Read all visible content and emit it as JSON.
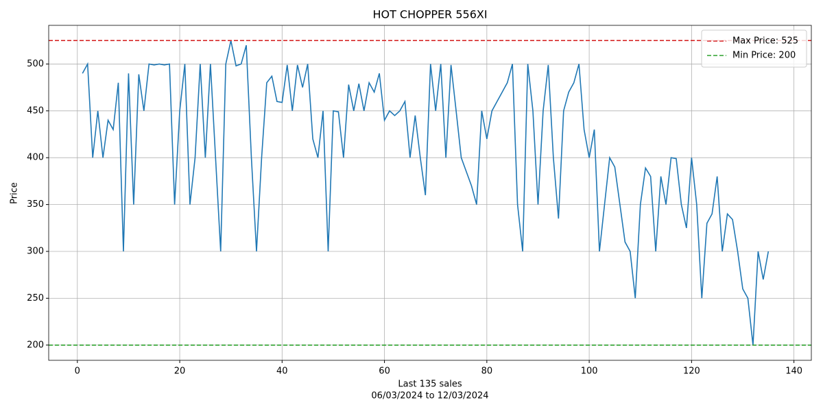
{
  "chart_data": {
    "type": "line",
    "title": "HOT CHOPPER 556XI",
    "xlabel": [
      "Last 135 sales",
      "06/03/2024 to 12/03/2024"
    ],
    "ylabel": "Price",
    "x": [
      1,
      2,
      3,
      4,
      5,
      6,
      7,
      8,
      9,
      10,
      11,
      12,
      13,
      14,
      15,
      16,
      17,
      18,
      19,
      20,
      21,
      22,
      23,
      24,
      25,
      26,
      27,
      28,
      29,
      30,
      31,
      32,
      33,
      34,
      35,
      36,
      37,
      38,
      39,
      40,
      41,
      42,
      43,
      44,
      45,
      46,
      47,
      48,
      49,
      50,
      51,
      52,
      53,
      54,
      55,
      56,
      57,
      58,
      59,
      60,
      61,
      62,
      63,
      64,
      65,
      66,
      67,
      68,
      69,
      70,
      71,
      72,
      73,
      74,
      75,
      76,
      77,
      78,
      79,
      80,
      81,
      82,
      83,
      84,
      85,
      86,
      87,
      88,
      89,
      90,
      91,
      92,
      93,
      94,
      95,
      96,
      97,
      98,
      99,
      100,
      101,
      102,
      103,
      104,
      105,
      106,
      107,
      108,
      109,
      110,
      111,
      112,
      113,
      114,
      115,
      116,
      117,
      118,
      119,
      120,
      121,
      122,
      123,
      124,
      125,
      126,
      127,
      128,
      129,
      130,
      131,
      132,
      133,
      134,
      135
    ],
    "series": [
      {
        "color": "#1f77b4",
        "values": [
          490,
          500,
          400,
          450,
          400,
          440,
          430,
          480,
          300,
          490,
          350,
          489,
          450,
          500,
          499,
          500,
          499,
          500,
          350,
          450,
          500,
          350,
          400,
          500,
          400,
          500,
          400,
          300,
          500,
          525,
          498,
          500,
          520,
          400,
          300,
          400,
          480,
          487,
          460,
          459,
          499,
          450,
          499,
          475,
          500,
          420,
          400,
          450,
          300,
          450,
          449,
          400,
          478,
          450,
          479,
          450,
          480,
          470,
          490,
          440,
          450,
          445,
          450,
          460,
          400,
          445,
          400,
          360,
          500,
          450,
          500,
          400,
          499,
          450,
          400,
          385,
          370,
          350,
          450,
          420,
          450,
          460,
          470,
          480,
          500,
          350,
          300,
          500,
          450,
          350,
          450,
          499,
          400,
          335,
          450,
          470,
          480,
          500,
          430,
          400,
          430,
          300,
          350,
          400,
          390,
          350,
          310,
          300,
          250,
          350,
          389,
          380,
          300,
          380,
          350,
          400,
          399,
          350,
          325,
          400,
          350,
          250,
          330,
          340,
          380,
          300,
          340,
          334,
          300,
          260,
          250,
          200,
          300,
          270,
          300
        ]
      }
    ],
    "reference_lines": [
      {
        "name": "Max Price: 525",
        "value": 525,
        "color": "#d62728"
      },
      {
        "name": "Min Price: 200",
        "value": 200,
        "color": "#2ca02c"
      }
    ],
    "xlim": [
      -5.6,
      143.4
    ],
    "ylim": [
      183.75,
      541.25
    ],
    "xticks": [
      0,
      20,
      40,
      60,
      80,
      100,
      120,
      140
    ],
    "yticks": [
      200,
      250,
      300,
      350,
      400,
      450,
      500
    ],
    "grid": true,
    "legend": "upper right"
  }
}
